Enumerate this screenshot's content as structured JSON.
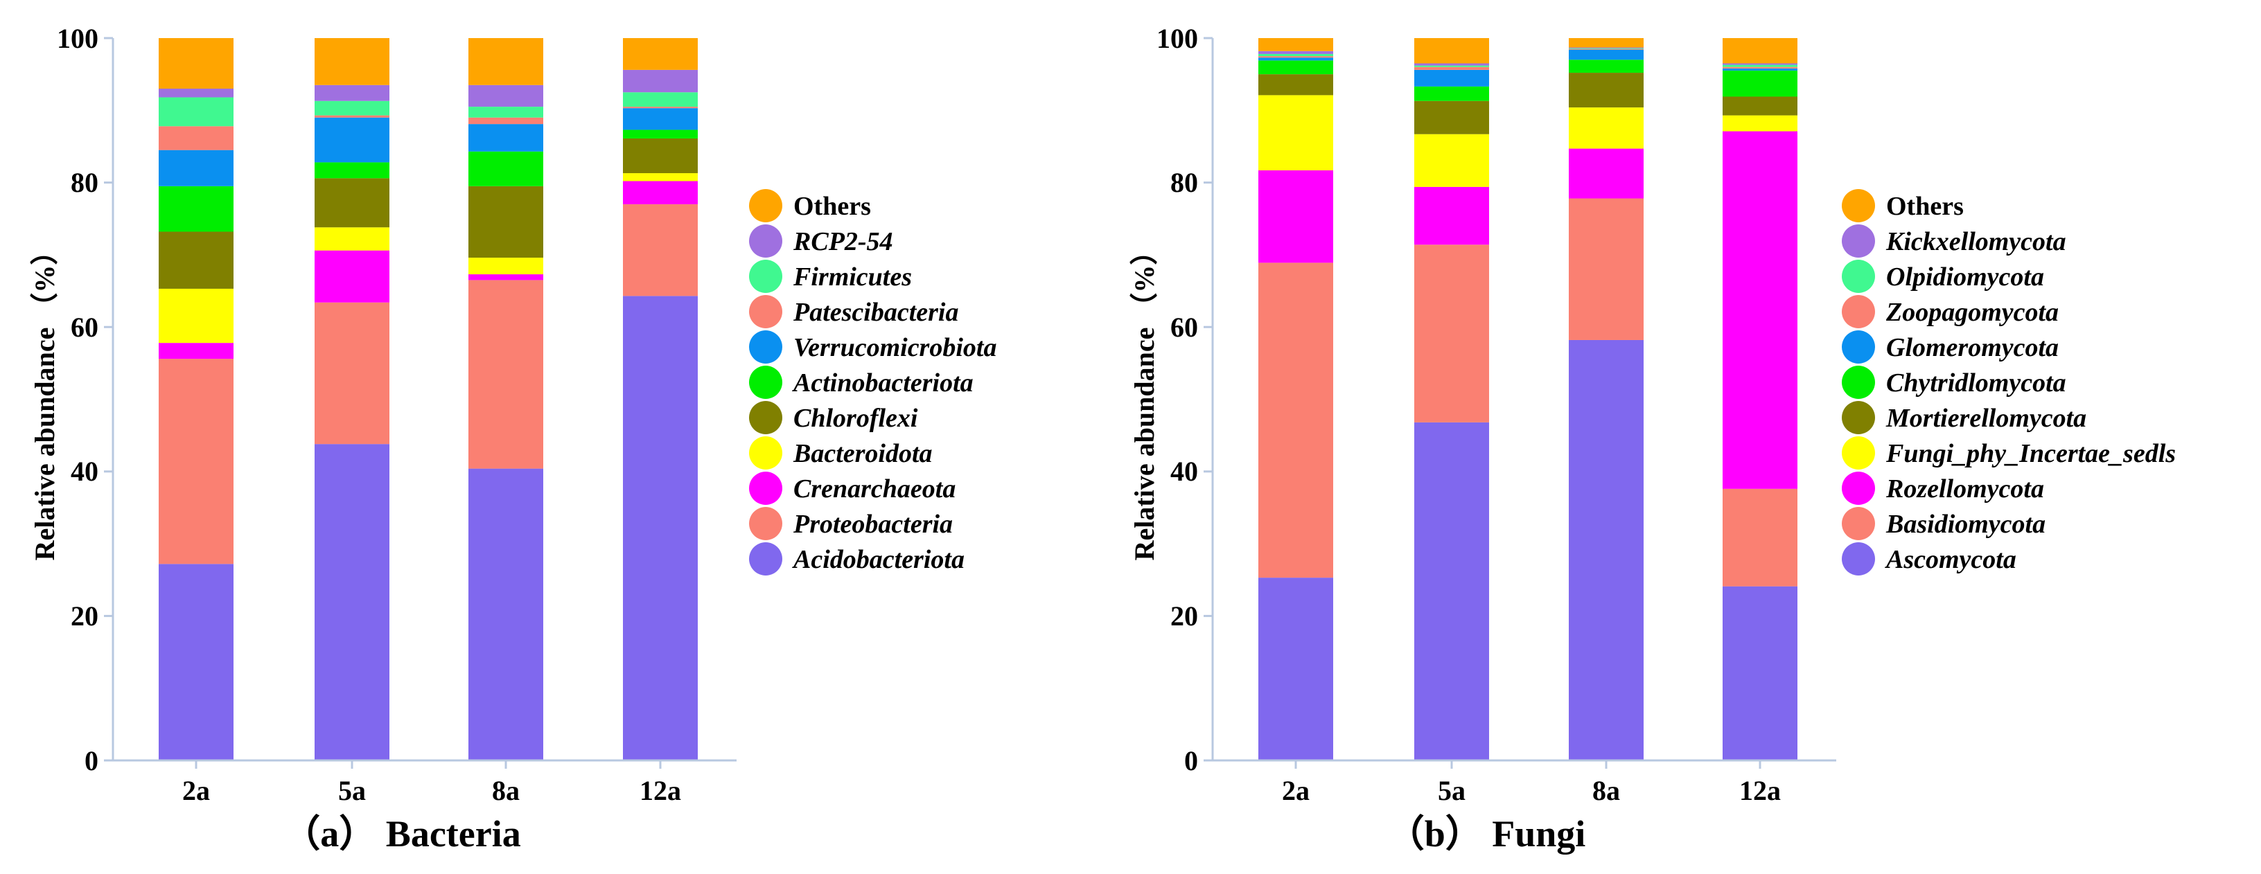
{
  "colors": {
    "Acidobacteriota": "#8068ee",
    "Proteobacteria": "#fa8072",
    "Crenarchaeota": "#ff00ff",
    "Bacteroidota": "#ffff00",
    "Chloroflexi": "#808000",
    "Actinobacteriota": "#00ee00",
    "Verrucomicrobiota": "#0a90f0",
    "Patescibacteria": "#fa8072",
    "Firmicutes": "#40f890",
    "RCP2-54": "#9f70e0",
    "Others": "#ffa500",
    "Ascomycota": "#8068ee",
    "Basidiomycota": "#fa8072",
    "Rozellomycota": "#ff00ff",
    "Fungi_phy_Incertae_sedls": "#ffff00",
    "Mortierellomycota": "#808000",
    "Chytridlomycota": "#00ee00",
    "Glomeromycota": "#0a90f0",
    "Zoopagomycota": "#fa8072",
    "Olpidiomycota": "#40f890",
    "Kickxellomycota": "#9f70e0"
  },
  "chart_data": [
    {
      "type": "bar",
      "stacked": true,
      "title": "Bacteria",
      "panel_label": "（a）",
      "caption": "（a）  Bacteria",
      "xlabel": "",
      "ylabel": "Relative abundance  （%）",
      "ylim": [
        0,
        100
      ],
      "yticks": [
        "0",
        "20",
        "40",
        "60",
        "80",
        "100"
      ],
      "categories": [
        "2a",
        "5a",
        "8a",
        "12a"
      ],
      "legend_position": "right",
      "series": [
        {
          "name": "Acidobacteriota",
          "values": [
            27.2,
            43.8,
            40.4,
            64.3
          ]
        },
        {
          "name": "Proteobacteria",
          "values": [
            28.4,
            19.6,
            26.1,
            12.7
          ]
        },
        {
          "name": "Crenarchaeota",
          "values": [
            2.2,
            7.2,
            0.8,
            3.2
          ]
        },
        {
          "name": "Bacteroidota",
          "values": [
            7.5,
            3.2,
            2.3,
            1.1
          ]
        },
        {
          "name": "Chloroflexi",
          "values": [
            7.9,
            6.8,
            9.9,
            4.8
          ]
        },
        {
          "name": "Actinobacteriota",
          "values": [
            6.3,
            2.2,
            4.8,
            1.2
          ]
        },
        {
          "name": "Verrucomicrobiota",
          "values": [
            5.0,
            6.2,
            3.8,
            3.0
          ]
        },
        {
          "name": "Patescibacteria",
          "values": [
            3.3,
            0.3,
            0.9,
            0.2
          ]
        },
        {
          "name": "Firmicutes",
          "values": [
            4.0,
            2.0,
            1.5,
            2.0
          ]
        },
        {
          "name": "RCP2-54",
          "values": [
            1.2,
            2.2,
            3.0,
            3.1
          ]
        },
        {
          "name": "Others",
          "values": [
            7.0,
            6.5,
            6.5,
            4.4
          ]
        }
      ]
    },
    {
      "type": "bar",
      "stacked": true,
      "title": "Fungi",
      "panel_label": "（b）",
      "caption": "（b）  Fungi",
      "xlabel": "",
      "ylabel": "Relative abundance  （%）",
      "ylim": [
        0,
        100
      ],
      "yticks": [
        "0",
        "20",
        "40",
        "60",
        "80",
        "100"
      ],
      "categories": [
        "2a",
        "5a",
        "8a",
        "12a"
      ],
      "legend_position": "right",
      "series": [
        {
          "name": "Ascomycota",
          "values": [
            25.3,
            46.8,
            58.2,
            24.1
          ]
        },
        {
          "name": "Basidiomycota",
          "values": [
            43.6,
            24.6,
            19.6,
            13.5
          ]
        },
        {
          "name": "Rozellomycota",
          "values": [
            12.8,
            8.0,
            6.9,
            49.5
          ]
        },
        {
          "name": "Fungi_phy_Incertae_sedls",
          "values": [
            10.4,
            7.3,
            5.7,
            2.2
          ]
        },
        {
          "name": "Mortierellomycota",
          "values": [
            2.9,
            4.6,
            4.8,
            2.6
          ]
        },
        {
          "name": "Chytridlomycota",
          "values": [
            1.9,
            2.0,
            1.8,
            3.6
          ]
        },
        {
          "name": "Glomeromycota",
          "values": [
            0.4,
            2.3,
            1.4,
            0.3
          ]
        },
        {
          "name": "Zoopagomycota",
          "values": [
            0.2,
            0.4,
            0.1,
            0.2
          ]
        },
        {
          "name": "Olpidiomycota",
          "values": [
            0.3,
            0.2,
            0.1,
            0.3
          ]
        },
        {
          "name": "Kickxellomycota",
          "values": [
            0.4,
            0.3,
            0.1,
            0.2
          ]
        },
        {
          "name": "Others",
          "values": [
            1.8,
            3.5,
            1.3,
            3.5
          ]
        }
      ]
    }
  ]
}
